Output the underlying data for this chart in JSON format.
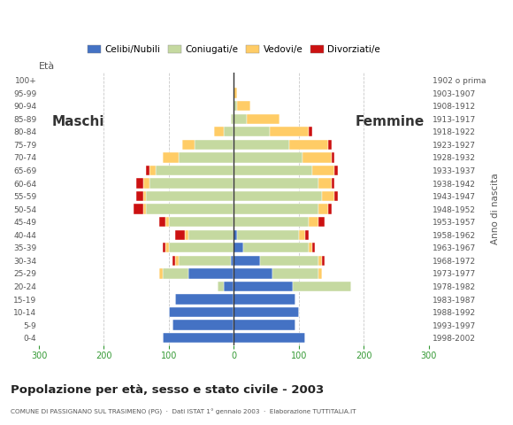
{
  "age_groups": [
    "0-4",
    "5-9",
    "10-14",
    "15-19",
    "20-24",
    "25-29",
    "30-34",
    "35-39",
    "40-44",
    "45-49",
    "50-54",
    "55-59",
    "60-64",
    "65-69",
    "70-74",
    "75-79",
    "80-84",
    "85-89",
    "90-94",
    "95-99",
    "100+"
  ],
  "birth_years": [
    "1998-2002",
    "1993-1997",
    "1988-1992",
    "1983-1987",
    "1978-1982",
    "1973-1977",
    "1968-1972",
    "1963-1967",
    "1958-1962",
    "1953-1957",
    "1948-1952",
    "1943-1947",
    "1938-1942",
    "1933-1937",
    "1928-1932",
    "1923-1927",
    "1918-1922",
    "1913-1917",
    "1908-1912",
    "1903-1907",
    "1902 o prima"
  ],
  "males": {
    "celibi": [
      110,
      95,
      100,
      90,
      15,
      70,
      5,
      0,
      0,
      0,
      0,
      0,
      0,
      0,
      0,
      0,
      0,
      0,
      0,
      0,
      0
    ],
    "coniugati": [
      0,
      0,
      0,
      0,
      10,
      40,
      80,
      100,
      70,
      100,
      135,
      135,
      130,
      120,
      85,
      60,
      15,
      5,
      0,
      0,
      0
    ],
    "vedovi": [
      0,
      0,
      0,
      0,
      0,
      5,
      5,
      5,
      5,
      5,
      5,
      5,
      10,
      10,
      25,
      20,
      15,
      0,
      0,
      0,
      0
    ],
    "divorziati": [
      0,
      0,
      0,
      0,
      0,
      0,
      5,
      5,
      15,
      10,
      15,
      10,
      10,
      5,
      0,
      0,
      0,
      0,
      0,
      0,
      0
    ]
  },
  "females": {
    "nubili": [
      110,
      95,
      100,
      95,
      90,
      60,
      40,
      15,
      5,
      0,
      0,
      0,
      0,
      0,
      0,
      0,
      0,
      0,
      0,
      0,
      0
    ],
    "coniugate": [
      0,
      0,
      0,
      0,
      90,
      70,
      90,
      100,
      95,
      115,
      130,
      135,
      130,
      120,
      105,
      85,
      55,
      20,
      5,
      0,
      0
    ],
    "vedove": [
      0,
      0,
      0,
      0,
      0,
      5,
      5,
      5,
      10,
      15,
      15,
      20,
      20,
      35,
      45,
      60,
      60,
      50,
      20,
      5,
      0
    ],
    "divorziate": [
      0,
      0,
      0,
      0,
      0,
      0,
      5,
      5,
      5,
      10,
      5,
      5,
      5,
      5,
      5,
      5,
      5,
      0,
      0,
      0,
      0
    ]
  },
  "color_celibi": "#4472C4",
  "color_coniugati": "#C5D9A0",
  "color_vedovi": "#FFCC66",
  "color_divorziati": "#CC1111",
  "title": "Popolazione per età, sesso e stato civile - 2003",
  "subtitle": "COMUNE DI PASSIGNANO SUL TRASIMENO (PG)  ·  Dati ISTAT 1° gennaio 2003  ·  Elaborazione TUTTITALIA.IT",
  "xlim": 300,
  "legend_labels": [
    "Celibi/Nubili",
    "Coniugati/e",
    "Vedovi/e",
    "Divorziati/e"
  ],
  "eta_label": "Età",
  "anno_label": "Anno di nascita",
  "maschi_label": "Maschi",
  "femmine_label": "Femmine",
  "bg_color": "#FFFFFF",
  "grid_color": "#BBBBBB"
}
